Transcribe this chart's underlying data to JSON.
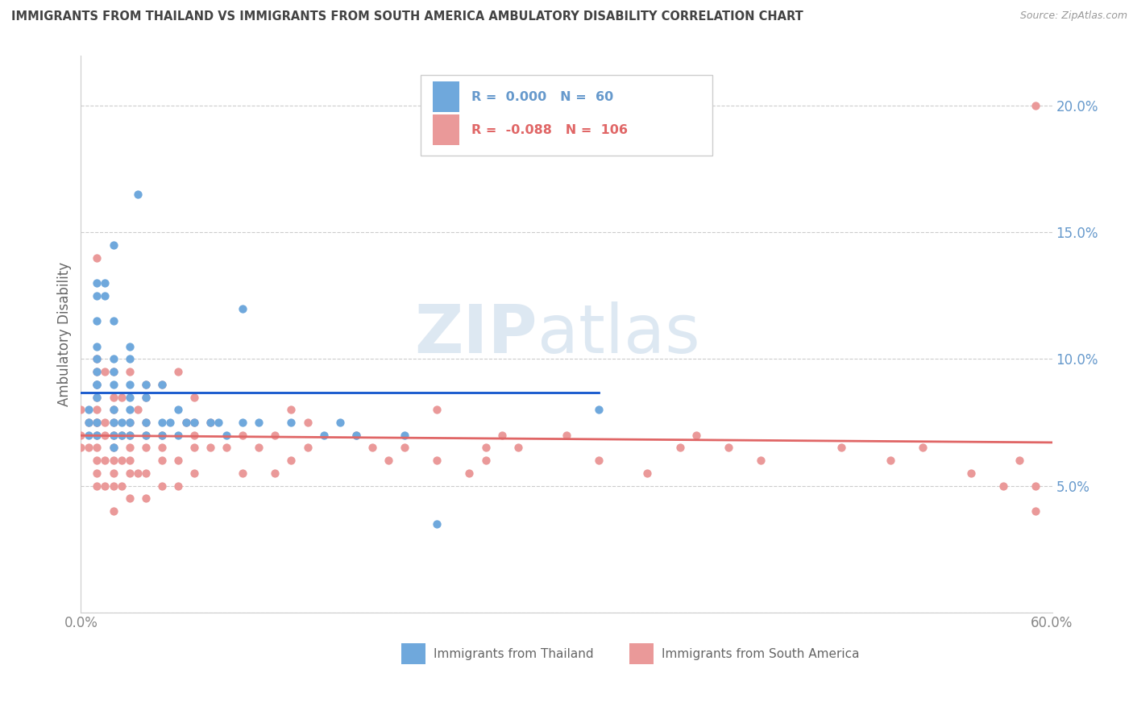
{
  "title": "IMMIGRANTS FROM THAILAND VS IMMIGRANTS FROM SOUTH AMERICA AMBULATORY DISABILITY CORRELATION CHART",
  "source": "Source: ZipAtlas.com",
  "ylabel": "Ambulatory Disability",
  "xlim": [
    0.0,
    0.6
  ],
  "ylim": [
    0.0,
    0.22
  ],
  "x_ticks": [
    0.0,
    0.1,
    0.2,
    0.3,
    0.4,
    0.5,
    0.6
  ],
  "x_tick_labels": [
    "0.0%",
    "",
    "",
    "",
    "",
    "",
    "60.0%"
  ],
  "y_ticks": [
    0.0,
    0.05,
    0.1,
    0.15,
    0.2
  ],
  "y_tick_labels": [
    "",
    "5.0%",
    "10.0%",
    "15.0%",
    "20.0%"
  ],
  "watermark_zip": "ZIP",
  "watermark_atlas": "atlas",
  "legend1_r": "0.000",
  "legend1_n": "60",
  "legend2_r": "-0.088",
  "legend2_n": "106",
  "blue_color": "#6fa8dc",
  "pink_color": "#ea9999",
  "blue_line_color": "#1155cc",
  "pink_line_color": "#e06666",
  "grid_color": "#cccccc",
  "label_color": "#6699cc",
  "title_color": "#434343",
  "source_color": "#999999",
  "ylabel_color": "#666666",
  "bottom_legend_color": "#666666",
  "thailand_x": [
    0.005,
    0.01,
    0.01,
    0.01,
    0.01,
    0.01,
    0.01,
    0.01,
    0.01,
    0.01,
    0.01,
    0.01,
    0.015,
    0.015,
    0.02,
    0.02,
    0.02,
    0.02,
    0.02,
    0.02,
    0.02,
    0.02,
    0.02,
    0.025,
    0.025,
    0.03,
    0.03,
    0.03,
    0.03,
    0.03,
    0.03,
    0.03,
    0.035,
    0.04,
    0.04,
    0.04,
    0.04,
    0.05,
    0.05,
    0.05,
    0.055,
    0.06,
    0.06,
    0.065,
    0.07,
    0.08,
    0.085,
    0.09,
    0.1,
    0.1,
    0.11,
    0.13,
    0.15,
    0.16,
    0.17,
    0.2,
    0.22,
    0.32,
    0.005,
    0.005
  ],
  "thailand_y": [
    0.075,
    0.07,
    0.075,
    0.085,
    0.09,
    0.09,
    0.095,
    0.1,
    0.105,
    0.115,
    0.125,
    0.13,
    0.125,
    0.13,
    0.065,
    0.07,
    0.075,
    0.08,
    0.09,
    0.095,
    0.1,
    0.115,
    0.145,
    0.07,
    0.075,
    0.07,
    0.075,
    0.08,
    0.085,
    0.09,
    0.1,
    0.105,
    0.165,
    0.07,
    0.075,
    0.085,
    0.09,
    0.07,
    0.075,
    0.09,
    0.075,
    0.07,
    0.08,
    0.075,
    0.075,
    0.075,
    0.075,
    0.07,
    0.12,
    0.075,
    0.075,
    0.075,
    0.07,
    0.075,
    0.07,
    0.07,
    0.035,
    0.08,
    0.07,
    0.08
  ],
  "south_america_x": [
    0.0,
    0.0,
    0.0,
    0.005,
    0.005,
    0.01,
    0.01,
    0.01,
    0.01,
    0.01,
    0.01,
    0.01,
    0.01,
    0.01,
    0.01,
    0.01,
    0.01,
    0.01,
    0.015,
    0.015,
    0.015,
    0.015,
    0.015,
    0.02,
    0.02,
    0.02,
    0.02,
    0.02,
    0.02,
    0.02,
    0.02,
    0.02,
    0.02,
    0.025,
    0.025,
    0.025,
    0.025,
    0.03,
    0.03,
    0.03,
    0.03,
    0.03,
    0.03,
    0.03,
    0.035,
    0.035,
    0.04,
    0.04,
    0.04,
    0.04,
    0.04,
    0.04,
    0.04,
    0.05,
    0.05,
    0.05,
    0.05,
    0.05,
    0.06,
    0.06,
    0.06,
    0.065,
    0.07,
    0.07,
    0.07,
    0.07,
    0.07,
    0.08,
    0.08,
    0.09,
    0.1,
    0.1,
    0.11,
    0.12,
    0.12,
    0.13,
    0.13,
    0.14,
    0.14,
    0.17,
    0.18,
    0.19,
    0.2,
    0.22,
    0.24,
    0.25,
    0.26,
    0.27,
    0.3,
    0.32,
    0.35,
    0.37,
    0.38,
    0.4,
    0.42,
    0.47,
    0.5,
    0.52,
    0.55,
    0.57,
    0.58,
    0.59,
    0.59,
    0.22,
    0.25,
    0.59
  ],
  "south_america_y": [
    0.065,
    0.07,
    0.08,
    0.065,
    0.075,
    0.05,
    0.055,
    0.06,
    0.065,
    0.07,
    0.075,
    0.075,
    0.08,
    0.085,
    0.09,
    0.095,
    0.1,
    0.14,
    0.05,
    0.06,
    0.07,
    0.075,
    0.095,
    0.04,
    0.05,
    0.055,
    0.06,
    0.065,
    0.07,
    0.075,
    0.08,
    0.085,
    0.095,
    0.05,
    0.06,
    0.07,
    0.085,
    0.045,
    0.055,
    0.06,
    0.065,
    0.07,
    0.075,
    0.095,
    0.055,
    0.08,
    0.045,
    0.055,
    0.065,
    0.07,
    0.075,
    0.085,
    0.09,
    0.05,
    0.06,
    0.065,
    0.07,
    0.09,
    0.05,
    0.06,
    0.095,
    0.075,
    0.055,
    0.065,
    0.07,
    0.075,
    0.085,
    0.065,
    0.075,
    0.065,
    0.055,
    0.07,
    0.065,
    0.055,
    0.07,
    0.06,
    0.08,
    0.065,
    0.075,
    0.07,
    0.065,
    0.06,
    0.065,
    0.06,
    0.055,
    0.065,
    0.07,
    0.065,
    0.07,
    0.06,
    0.055,
    0.065,
    0.07,
    0.065,
    0.06,
    0.065,
    0.06,
    0.065,
    0.055,
    0.05,
    0.06,
    0.05,
    0.2,
    0.08,
    0.06,
    0.04
  ]
}
